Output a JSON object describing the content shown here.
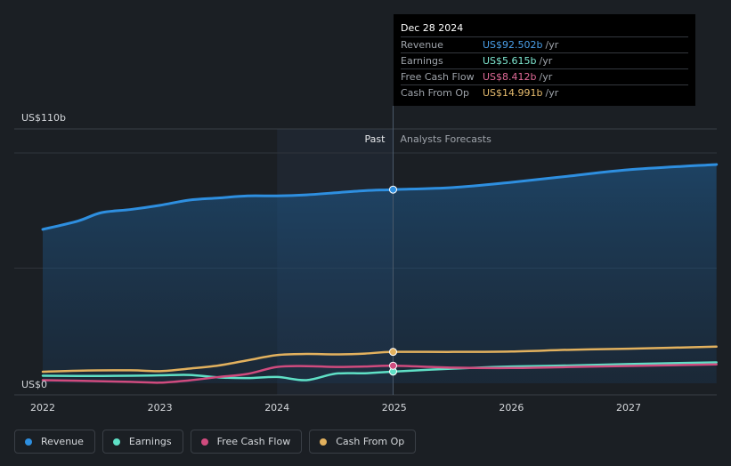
{
  "chart_data": {
    "type": "line",
    "y_axis": {
      "top_label": "US$110b",
      "bottom_label": "US$0",
      "ylim": [
        0,
        110
      ]
    },
    "x_ticks": [
      {
        "label": "2022",
        "value": 2022.0
      },
      {
        "label": "2023",
        "value": 2023.0
      },
      {
        "label": "2024",
        "value": 2024.0
      },
      {
        "label": "2025",
        "value": 2025.0
      },
      {
        "label": "2026",
        "value": 2026.0
      },
      {
        "label": "2027",
        "value": 2027.0
      }
    ],
    "past_label": "Past",
    "forecast_label": "Analysts Forecasts",
    "divider_x": 2024.99,
    "shade_start_x": 2024.0,
    "series": [
      {
        "key": "revenue",
        "name": "Revenue",
        "color": "#2e8fe0",
        "fill": true,
        "points": [
          [
            2022.0,
            73.5
          ],
          [
            2022.3,
            77.5
          ],
          [
            2022.5,
            81.5
          ],
          [
            2022.75,
            83.0
          ],
          [
            2023.0,
            85.0
          ],
          [
            2023.25,
            87.5
          ],
          [
            2023.5,
            88.5
          ],
          [
            2023.75,
            89.5
          ],
          [
            2024.0,
            89.5
          ],
          [
            2024.25,
            90.0
          ],
          [
            2024.5,
            91.0
          ],
          [
            2024.75,
            92.0
          ],
          [
            2024.99,
            92.5
          ],
          [
            2025.5,
            93.5
          ],
          [
            2026.0,
            96.0
          ],
          [
            2026.5,
            99.0
          ],
          [
            2027.0,
            102.0
          ],
          [
            2027.75,
            104.5
          ]
        ]
      },
      {
        "key": "earnings",
        "name": "Earnings",
        "color": "#5fe0c6",
        "fill": false,
        "points": [
          [
            2022.0,
            3.6
          ],
          [
            2022.3,
            3.5
          ],
          [
            2022.75,
            3.6
          ],
          [
            2023.0,
            3.8
          ],
          [
            2023.25,
            4.0
          ],
          [
            2023.5,
            2.8
          ],
          [
            2023.75,
            2.5
          ],
          [
            2024.0,
            3.0
          ],
          [
            2024.25,
            1.5
          ],
          [
            2024.5,
            4.6
          ],
          [
            2024.75,
            4.8
          ],
          [
            2024.99,
            5.6
          ],
          [
            2025.5,
            7.0
          ],
          [
            2026.0,
            8.0
          ],
          [
            2026.5,
            8.5
          ],
          [
            2027.0,
            9.2
          ],
          [
            2027.75,
            10.0
          ]
        ]
      },
      {
        "key": "fcf",
        "name": "Free Cash Flow",
        "color": "#d04b7e",
        "fill": false,
        "points": [
          [
            2022.0,
            1.5
          ],
          [
            2022.3,
            1.2
          ],
          [
            2022.75,
            0.7
          ],
          [
            2023.0,
            0.3
          ],
          [
            2023.25,
            1.4
          ],
          [
            2023.5,
            3.0
          ],
          [
            2023.75,
            4.5
          ],
          [
            2024.0,
            7.8
          ],
          [
            2024.25,
            8.2
          ],
          [
            2024.5,
            7.8
          ],
          [
            2024.75,
            8.0
          ],
          [
            2024.99,
            8.4
          ],
          [
            2025.5,
            7.5
          ],
          [
            2026.0,
            7.3
          ],
          [
            2026.5,
            7.8
          ],
          [
            2027.0,
            8.3
          ],
          [
            2027.75,
            9.0
          ]
        ]
      },
      {
        "key": "cfo",
        "name": "Cash From Op",
        "color": "#e2b15e",
        "fill": false,
        "points": [
          [
            2022.0,
            5.5
          ],
          [
            2022.3,
            6.0
          ],
          [
            2022.75,
            6.2
          ],
          [
            2023.0,
            5.8
          ],
          [
            2023.25,
            7.0
          ],
          [
            2023.5,
            8.5
          ],
          [
            2023.75,
            11.0
          ],
          [
            2024.0,
            13.5
          ],
          [
            2024.25,
            14.0
          ],
          [
            2024.5,
            13.8
          ],
          [
            2024.75,
            14.2
          ],
          [
            2024.99,
            15.0
          ],
          [
            2025.5,
            15.0
          ],
          [
            2026.0,
            15.2
          ],
          [
            2026.5,
            16.0
          ],
          [
            2027.0,
            16.5
          ],
          [
            2027.75,
            17.5
          ]
        ]
      }
    ]
  },
  "tooltip": {
    "date": "Dec 28 2024",
    "unit": "/yr",
    "rows": [
      {
        "label": "Revenue",
        "value": "US$92.502b",
        "color": "#4a9fe8"
      },
      {
        "label": "Earnings",
        "value": "US$5.615b",
        "color": "#7fe8d2"
      },
      {
        "label": "Free Cash Flow",
        "value": "US$8.412b",
        "color": "#e06a97"
      },
      {
        "label": "Cash From Op",
        "value": "US$14.991b",
        "color": "#e8bd6f"
      }
    ]
  },
  "legend": [
    {
      "label": "Revenue",
      "color": "#2e8fe0"
    },
    {
      "label": "Earnings",
      "color": "#5fe0c6"
    },
    {
      "label": "Free Cash Flow",
      "color": "#d04b7e"
    },
    {
      "label": "Cash From Op",
      "color": "#e2b15e"
    }
  ]
}
